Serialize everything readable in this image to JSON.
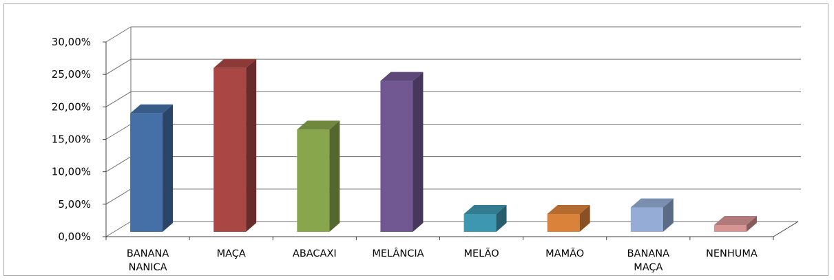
{
  "chart_data": {
    "type": "bar",
    "style": "3d-column",
    "grid": true,
    "legend": "none",
    "categories": [
      [
        "BANANA",
        "NANICA"
      ],
      [
        "MAÇA"
      ],
      [
        "ABACAXI"
      ],
      [
        "MELÂNCIA"
      ],
      [
        "MELÃO"
      ],
      [
        "MAMÃO"
      ],
      [
        "BANANA",
        "MAÇA"
      ],
      [
        "NENHUMA"
      ]
    ],
    "values": [
      19.0,
      26.0,
      16.5,
      24.0,
      3.5,
      3.5,
      4.5,
      1.8
    ],
    "ylim": [
      0,
      30
    ],
    "yticks": [
      "0,00%",
      "5,00%",
      "10,00%",
      "15,00%",
      "20,00%",
      "25,00%",
      "30,00%"
    ],
    "colors": [
      "#4470a7",
      "#a94744",
      "#88a64b",
      "#725893",
      "#3e97b0",
      "#db823a",
      "#95add6",
      "#d69593"
    ],
    "gridline_color": "#6e6e6e",
    "axis_color": "#404040"
  }
}
